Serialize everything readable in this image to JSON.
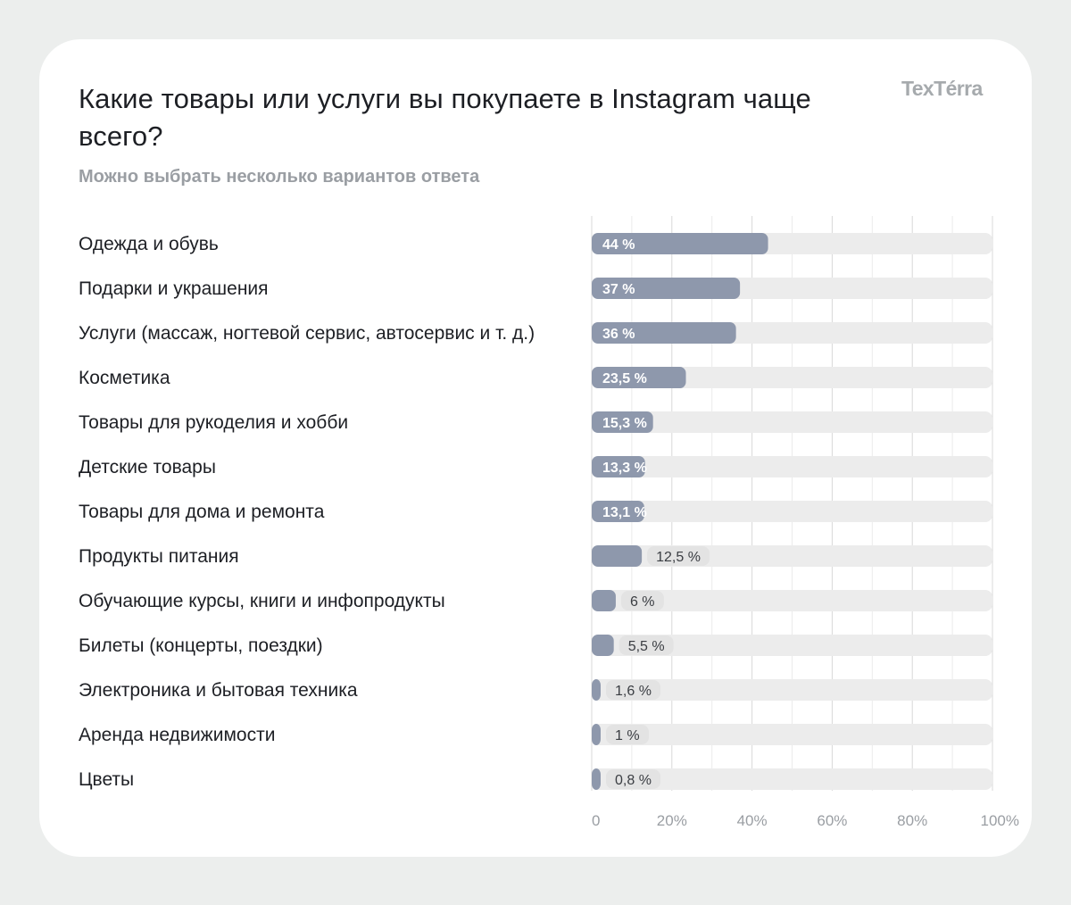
{
  "header": {
    "title": "Какие товары или услуги вы покупаете в Instagram чаще всего?",
    "subtitle": "Можно выбрать несколько вариантов ответа",
    "logo": "TexTérra"
  },
  "colors": {
    "bar": "#8e98ac",
    "track": "#ececec",
    "value_pill": "#e3e3e3",
    "grid_major": "#d8d8d8",
    "grid_minor": "#ebebeb"
  },
  "chart_data": {
    "type": "bar",
    "orientation": "horizontal",
    "title": "Какие товары или услуги вы покупаете в Instagram чаще всего?",
    "subtitle": "Можно выбрать несколько вариантов ответа",
    "xlabel": "",
    "ylabel": "",
    "xlim": [
      0,
      100
    ],
    "grid": true,
    "categories": [
      "Одежда и обувь",
      "Подарки и украшения",
      "Услуги (массаж, ногтевой сервис, автосервис и т. д.)",
      "Косметика",
      "Товары для рукоделия и хобби",
      "Детские товары",
      "Товары для дома и ремонта",
      "Продукты питания",
      "Обучающие курсы, книги и инфопродукты",
      "Билеты (концерты, поездки)",
      "Электроника и бытовая техника",
      "Аренда недвижимости",
      "Цветы"
    ],
    "values": [
      44,
      37,
      36,
      23.5,
      15.3,
      13.3,
      13.1,
      12.5,
      6,
      5.5,
      1.6,
      1,
      0.8
    ],
    "value_labels": [
      "44 %",
      "37 %",
      "36 %",
      "23,5 %",
      "15,3 %",
      "13,3 %",
      "13,1 %",
      "12,5 %",
      "6 %",
      "5,5 %",
      "1,6 %",
      "1 %",
      "0,8 %"
    ],
    "label_inside": [
      true,
      true,
      true,
      true,
      true,
      true,
      true,
      false,
      false,
      false,
      false,
      false,
      false
    ],
    "x_ticks": [
      0,
      20,
      40,
      60,
      80,
      100
    ],
    "x_tick_labels": [
      "0",
      "20%",
      "40%",
      "60%",
      "80%",
      "100%"
    ]
  }
}
